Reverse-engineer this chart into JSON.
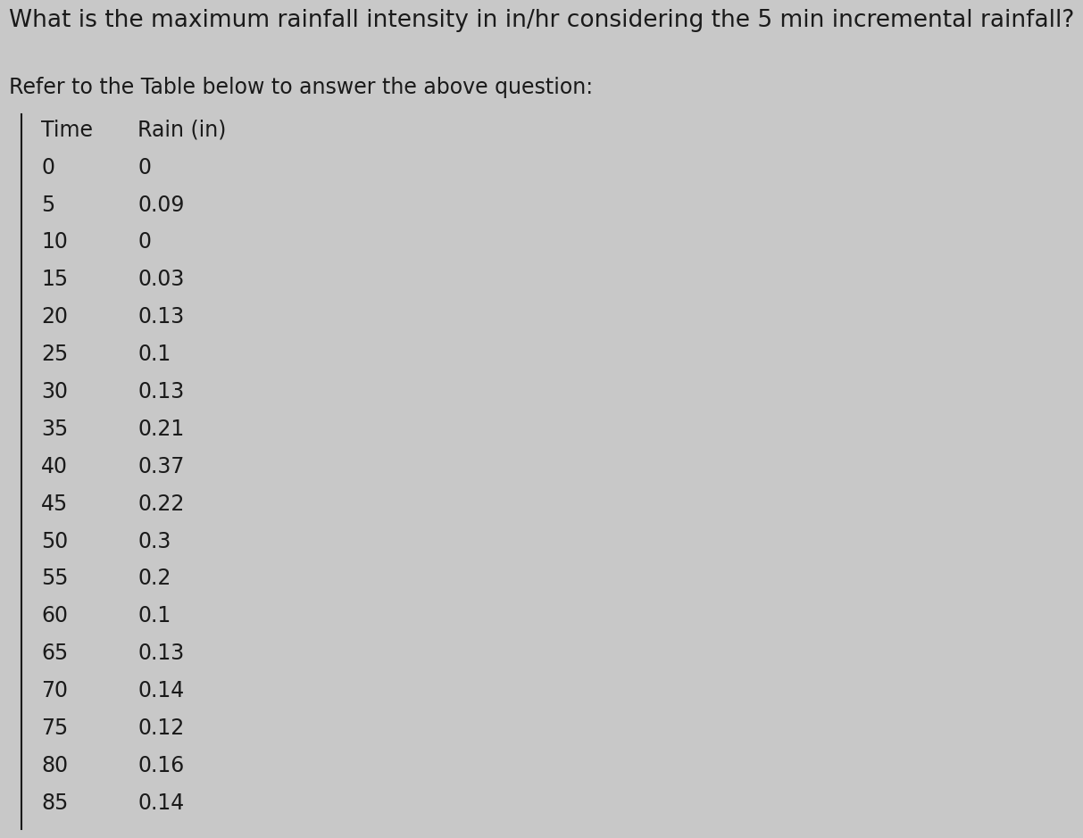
{
  "title": "What is the maximum rainfall intensity in in/hr considering the 5 min incremental rainfall?",
  "subtitle": "Refer to the Table below to answer the above question:",
  "col1_header": "Time",
  "col2_header": "Rain (in)",
  "time_values": [
    0,
    5,
    10,
    15,
    20,
    25,
    30,
    35,
    40,
    45,
    50,
    55,
    60,
    65,
    70,
    75,
    80,
    85
  ],
  "rain_values": [
    "0",
    "0.09",
    "0",
    "0.03",
    "0.13",
    "0.1",
    "0.13",
    "0.21",
    "0.37",
    "0.22",
    "0.3",
    "0.2",
    "0.1",
    "0.13",
    "0.14",
    "0.12",
    "0.16",
    "0.14"
  ],
  "bg_color": "#c8c8c8",
  "text_color": "#1a1a1a",
  "title_fontsize": 19,
  "subtitle_fontsize": 17,
  "table_fontsize": 17,
  "header_fontsize": 17
}
